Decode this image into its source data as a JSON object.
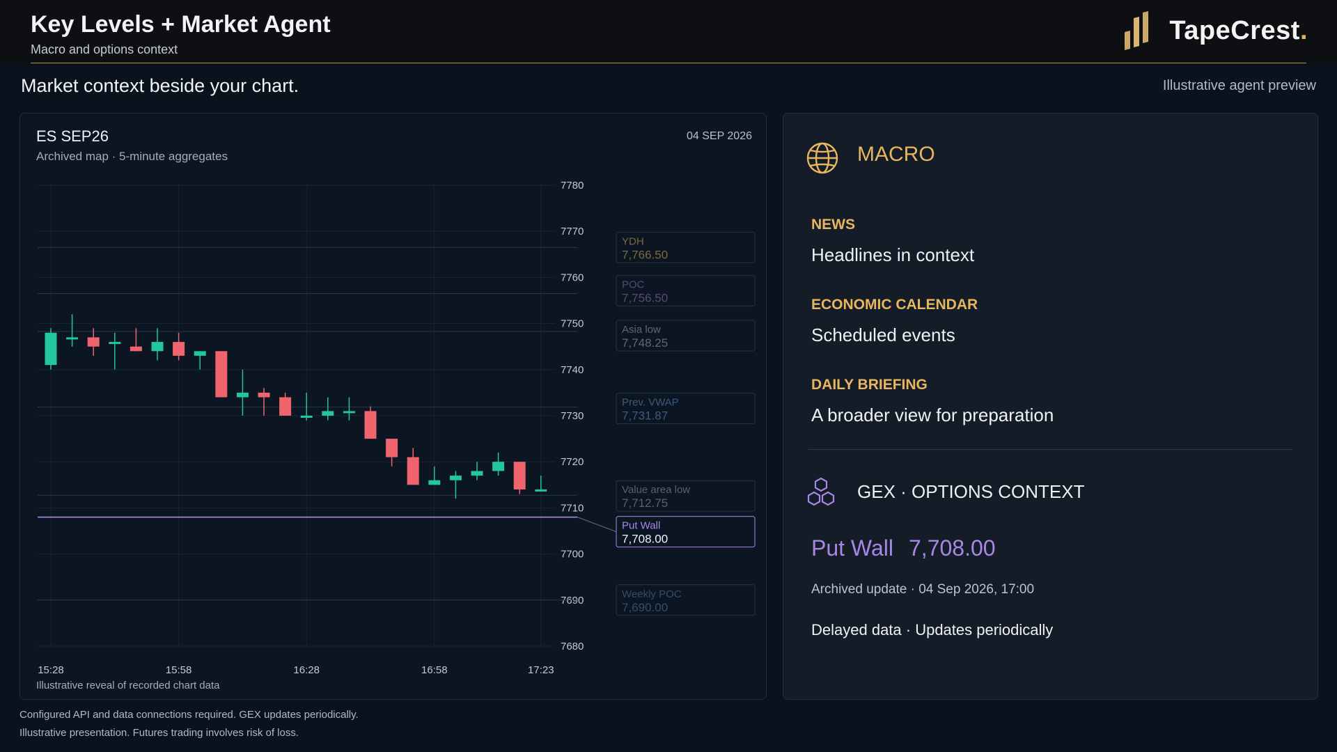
{
  "header": {
    "title": "Key Levels + Market Agent",
    "subtitle": "Macro and options context",
    "brand_name": "TapeCrest",
    "brand_dot": "."
  },
  "tagline": "Market context beside your chart.",
  "preview_note": "Illustrative agent preview",
  "chart_panel": {
    "symbol": "ES SEP26",
    "date": "04 SEP 2026",
    "description": "Archived map · 5-minute aggregates",
    "caption": "Illustrative reveal of recorded chart data"
  },
  "chart_data": {
    "type": "candlestick",
    "ylim": [
      7680,
      7780
    ],
    "y_ticks": [
      "7780",
      "7770",
      "7760",
      "7750",
      "7740",
      "7730",
      "7720",
      "7710",
      "7700",
      "7690",
      "7680"
    ],
    "x_ticks": [
      "15:28",
      "15:58",
      "16:28",
      "16:58",
      "17:23"
    ],
    "colors": {
      "up": "#22c6a0",
      "down": "#f0646e"
    },
    "candles": [
      {
        "o": 7741,
        "h": 7749,
        "l": 7740,
        "c": 7748
      },
      {
        "o": 7747,
        "h": 7752,
        "l": 7745,
        "c": 7747
      },
      {
        "o": 7747,
        "h": 7749,
        "l": 7743,
        "c": 7745
      },
      {
        "o": 7746,
        "h": 7748,
        "l": 7740,
        "c": 7746
      },
      {
        "o": 7745,
        "h": 7749,
        "l": 7744,
        "c": 7744
      },
      {
        "o": 7744,
        "h": 7749,
        "l": 7742,
        "c": 7746
      },
      {
        "o": 7746,
        "h": 7748,
        "l": 7742,
        "c": 7743
      },
      {
        "o": 7743,
        "h": 7744,
        "l": 7740,
        "c": 7744
      },
      {
        "o": 7744,
        "h": 7744,
        "l": 7734,
        "c": 7734
      },
      {
        "o": 7734,
        "h": 7740,
        "l": 7730,
        "c": 7735
      },
      {
        "o": 7735,
        "h": 7736,
        "l": 7730,
        "c": 7734
      },
      {
        "o": 7734,
        "h": 7735,
        "l": 7730,
        "c": 7730
      },
      {
        "o": 7730,
        "h": 7735,
        "l": 7729,
        "c": 7730
      },
      {
        "o": 7730,
        "h": 7734,
        "l": 7729,
        "c": 7731
      },
      {
        "o": 7731,
        "h": 7734,
        "l": 7729,
        "c": 7731
      },
      {
        "o": 7731,
        "h": 7732,
        "l": 7725,
        "c": 7725
      },
      {
        "o": 7725,
        "h": 7725,
        "l": 7719,
        "c": 7721
      },
      {
        "o": 7721,
        "h": 7723,
        "l": 7715,
        "c": 7715
      },
      {
        "o": 7715,
        "h": 7719,
        "l": 7715,
        "c": 7716
      },
      {
        "o": 7716,
        "h": 7718,
        "l": 7712,
        "c": 7717
      },
      {
        "o": 7717,
        "h": 7720,
        "l": 7716,
        "c": 7718
      },
      {
        "o": 7718,
        "h": 7722,
        "l": 7717,
        "c": 7720
      },
      {
        "o": 7720,
        "h": 7720,
        "l": 7713,
        "c": 7714
      },
      {
        "o": 7714,
        "h": 7717,
        "l": 7714,
        "c": 7714
      }
    ],
    "levels": [
      {
        "name": "YDH",
        "value": 7766.5,
        "value_label": "7,766.50",
        "color": "#7a6a42",
        "active": false
      },
      {
        "name": "POC",
        "value": 7756.5,
        "value_label": "7,756.50",
        "color": "#5a4a70",
        "active": false
      },
      {
        "name": "Asia low",
        "value": 7748.25,
        "value_label": "7,748.25",
        "color": "#5c6878",
        "active": false
      },
      {
        "name": "Prev. VWAP",
        "value": 7731.87,
        "value_label": "7,731.87",
        "color": "#3d5b80",
        "active": false
      },
      {
        "name": "Value area low",
        "value": 7712.75,
        "value_label": "7,712.75",
        "color": "#566272",
        "active": false
      },
      {
        "name": "Put Wall",
        "value": 7708.0,
        "value_label": "7,708.00",
        "color": "#a987e6",
        "active": true
      },
      {
        "name": "Weekly POC",
        "value": 7690.0,
        "value_label": "7,690.00",
        "color": "#3b4a63",
        "active": false
      }
    ]
  },
  "macro": {
    "title": "MACRO",
    "items": [
      {
        "label": "NEWS",
        "text": "Headlines in context"
      },
      {
        "label": "ECONOMIC CALENDAR",
        "text": "Scheduled events"
      },
      {
        "label": "DAILY BRIEFING",
        "text": "A broader view for preparation"
      }
    ],
    "gex": {
      "title": "GEX · OPTIONS CONTEXT",
      "wall_label": "Put Wall",
      "wall_value": "7,708.00",
      "archived": "Archived update · 04 Sep 2026, 17:00",
      "delayed": "Delayed data · Updates periodically"
    }
  },
  "disclaimers": [
    "Configured API and data connections required. GEX updates periodically.",
    "Illustrative presentation. Futures trading involves risk of loss."
  ],
  "icons": {
    "logo": "bar-logo-icon",
    "macro": "globe-icon",
    "gex": "hexagon-cluster-icon"
  },
  "colors": {
    "accent_gold": "#e8b65d",
    "accent_purple": "#a987e6"
  }
}
